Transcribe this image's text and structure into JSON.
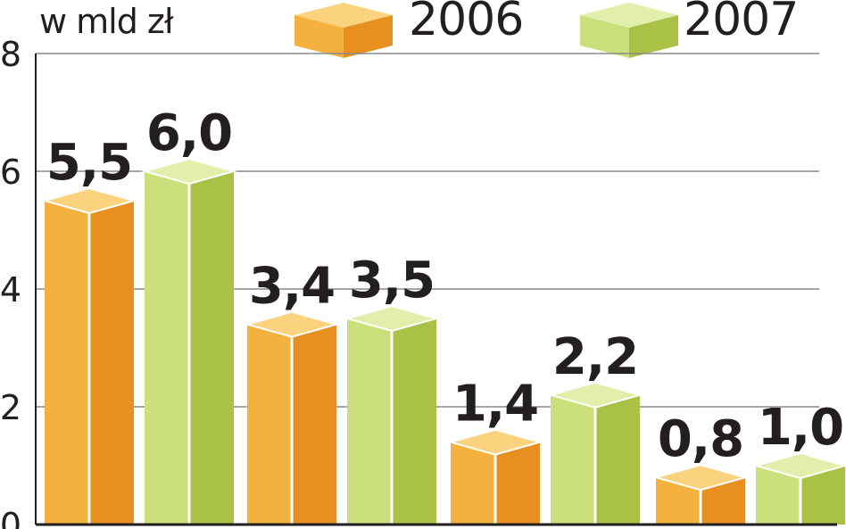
{
  "chart_data": {
    "type": "bar",
    "unit_label": "w mld zł",
    "categories": [
      "",
      "",
      "",
      ""
    ],
    "series": [
      {
        "name": "2006",
        "values": [
          5.5,
          3.4,
          1.4,
          0.8
        ],
        "labels": [
          "5,5",
          "3,4",
          "1,4",
          "0,8"
        ]
      },
      {
        "name": "2007",
        "values": [
          6.0,
          3.5,
          2.2,
          1.0
        ],
        "labels": [
          "6,0",
          "3,5",
          "2,2",
          "1,0"
        ]
      }
    ],
    "yticks": [
      "0",
      "2",
      "4",
      "6",
      "8"
    ],
    "ylim": [
      0,
      8
    ],
    "grid": true,
    "legend_position": "top",
    "colors": {
      "2006": {
        "front": "#f5b13e",
        "side": "#e78f20",
        "top": "#fbd27e"
      },
      "2007": {
        "front": "#cbe07c",
        "side": "#a9c246",
        "top": "#e1efaa"
      },
      "grid": "#8a8a8a",
      "text": "#231f20"
    }
  }
}
